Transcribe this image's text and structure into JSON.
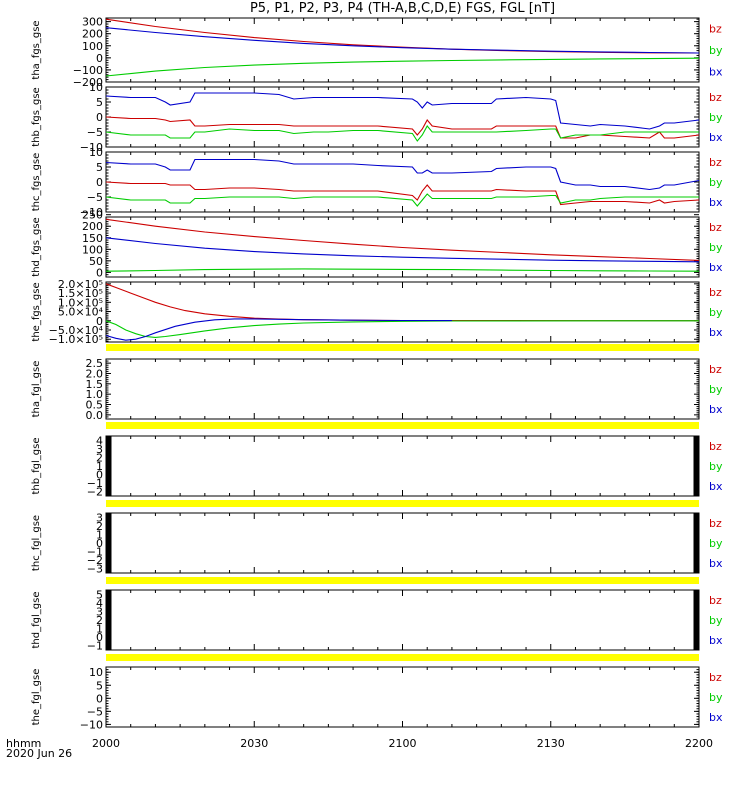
{
  "chart_data": {
    "type": "line",
    "title": "P5, P1, P2, P3, P4 (TH-A,B,C,D,E) FGS, FGL [nT]",
    "x_ticks": [
      "2000",
      "2030",
      "2100",
      "2130",
      "2200"
    ],
    "xlim_minutes": [
      0,
      120
    ],
    "x_unit_label": "hhmm",
    "date_label": "2020 Jun 26",
    "series_colors": {
      "bz": "#cc0000",
      "by": "#00cc00",
      "bx": "#0000cc"
    },
    "panels": [
      {
        "ylabel": "tha_fgs_gse",
        "ylim": [
          -200,
          330
        ],
        "yticks": [
          "300",
          "200",
          "100",
          "0",
          "−100",
          "−200"
        ],
        "ytick_values": [
          300,
          200,
          100,
          0,
          -100,
          -200
        ],
        "legend": [
          "bz",
          "by",
          "bx"
        ],
        "series": [
          {
            "name": "bz",
            "x": [
              0,
              10,
              20,
              30,
              40,
              50,
              60,
              70,
              80,
              90,
              100,
              110,
              120
            ],
            "values": [
              320,
              260,
              210,
              168,
              135,
              108,
              88,
              72,
              60,
              52,
              46,
              42,
              40
            ]
          },
          {
            "name": "by",
            "x": [
              0,
              10,
              20,
              30,
              40,
              50,
              60,
              70,
              80,
              90,
              100,
              110,
              120
            ],
            "values": [
              -150,
              -110,
              -80,
              -60,
              -45,
              -35,
              -28,
              -22,
              -17,
              -13,
              -9,
              -6,
              -3
            ]
          },
          {
            "name": "bx",
            "x": [
              0,
              10,
              20,
              30,
              40,
              50,
              60,
              70,
              80,
              90,
              100,
              110,
              120
            ],
            "values": [
              250,
              210,
              175,
              145,
              120,
              100,
              84,
              72,
              63,
              55,
              49,
              44,
              40
            ]
          }
        ]
      },
      {
        "ylabel": "thb_fgs_gse",
        "ylim": [
          -10,
          10
        ],
        "yticks": [
          "10",
          "5",
          "0",
          "−5",
          "−10"
        ],
        "ytick_values": [
          10,
          5,
          0,
          -5,
          -10
        ],
        "legend": [
          "bz",
          "by",
          "bx"
        ],
        "series": [
          {
            "name": "bx",
            "x": [
              0,
              5,
              10,
              12,
              13,
              17,
              18,
              20,
              25,
              30,
              35,
              38,
              42,
              45,
              50,
              55,
              62,
              63,
              64,
              65,
              66,
              70,
              78,
              79,
              85,
              90,
              91,
              92,
              95,
              98,
              100,
              105,
              110,
              112,
              113,
              115,
              120
            ],
            "values": [
              7,
              6.5,
              6.5,
              5,
              4,
              5,
              8,
              8,
              8,
              8,
              7.5,
              6,
              6.5,
              6.5,
              6.5,
              6.5,
              6,
              5,
              3,
              5,
              4,
              4.5,
              4.5,
              6,
              6.5,
              6,
              5.5,
              -2,
              -2.5,
              -3,
              -2.5,
              -3,
              -4,
              -3,
              -2,
              -2,
              -1
            ]
          },
          {
            "name": "bz",
            "x": [
              0,
              5,
              10,
              12,
              13,
              17,
              18,
              20,
              25,
              30,
              35,
              38,
              42,
              45,
              50,
              55,
              62,
              63,
              64,
              65,
              66,
              70,
              78,
              79,
              85,
              90,
              91,
              92,
              95,
              98,
              100,
              105,
              110,
              112,
              113,
              115,
              120
            ],
            "values": [
              0,
              -0.5,
              -0.5,
              -1,
              -1.5,
              -1,
              -3,
              -3,
              -2.5,
              -2.5,
              -2.5,
              -3,
              -3,
              -3,
              -3,
              -3,
              -4,
              -6,
              -4,
              -1,
              -3,
              -4,
              -4,
              -3,
              -3,
              -3,
              -3,
              -7,
              -7,
              -6,
              -6,
              -6.5,
              -7,
              -5,
              -7,
              -7,
              -6
            ]
          },
          {
            "name": "by",
            "x": [
              0,
              5,
              10,
              12,
              13,
              17,
              18,
              20,
              25,
              30,
              35,
              38,
              42,
              45,
              50,
              55,
              62,
              63,
              64,
              65,
              66,
              70,
              78,
              79,
              85,
              90,
              91,
              92,
              95,
              98,
              100,
              105,
              110,
              112,
              113,
              115,
              120
            ],
            "values": [
              -5,
              -6,
              -6,
              -6,
              -7,
              -7,
              -5,
              -5,
              -4,
              -4.5,
              -4.5,
              -5.5,
              -5,
              -5,
              -4.5,
              -4.5,
              -5.5,
              -8,
              -6,
              -3,
              -5,
              -5,
              -5,
              -5,
              -4.5,
              -4,
              -4,
              -7,
              -6,
              -6,
              -6,
              -5,
              -5,
              -5,
              -5,
              -5,
              -5
            ]
          }
        ]
      },
      {
        "ylabel": "thc_fgs_gse",
        "ylim": [
          -10,
          10
        ],
        "yticks": [
          "10",
          "5",
          "0",
          "−5",
          "−10"
        ],
        "ytick_values": [
          10,
          5,
          0,
          -5,
          -10
        ],
        "legend": [
          "bz",
          "by",
          "bx"
        ],
        "series": [
          {
            "name": "bx",
            "x": [
              0,
              5,
              10,
              12,
              13,
              17,
              18,
              20,
              25,
              30,
              35,
              38,
              42,
              45,
              50,
              55,
              62,
              63,
              64,
              65,
              66,
              70,
              78,
              79,
              85,
              90,
              91,
              92,
              95,
              98,
              100,
              105,
              110,
              112,
              113,
              115,
              120
            ],
            "values": [
              6.5,
              6,
              6,
              5,
              4,
              4,
              7.5,
              7.5,
              7.5,
              7.5,
              7,
              6,
              6,
              6,
              6,
              5.5,
              5,
              3,
              3,
              4,
              3,
              3,
              3.5,
              4.5,
              5,
              5,
              4.5,
              0,
              -1,
              -1,
              -1.5,
              -1.5,
              -2.5,
              -2,
              -1,
              -1,
              0.5
            ]
          },
          {
            "name": "bz",
            "x": [
              0,
              5,
              10,
              12,
              13,
              17,
              18,
              20,
              25,
              30,
              35,
              38,
              42,
              45,
              50,
              55,
              62,
              63,
              64,
              65,
              66,
              70,
              78,
              79,
              85,
              90,
              91,
              92,
              95,
              98,
              100,
              105,
              110,
              112,
              113,
              115,
              120
            ],
            "values": [
              0,
              -0.5,
              -0.5,
              -0.5,
              -1,
              -1,
              -2.5,
              -2.5,
              -2,
              -2,
              -2.5,
              -3,
              -3,
              -3,
              -3,
              -3,
              -4.5,
              -6,
              -3,
              -1,
              -3,
              -3,
              -3,
              -2.5,
              -3,
              -3,
              -3,
              -7.5,
              -7,
              -6.5,
              -6.5,
              -6.5,
              -7,
              -6,
              -7,
              -6.5,
              -6
            ]
          },
          {
            "name": "by",
            "x": [
              0,
              5,
              10,
              12,
              13,
              17,
              18,
              20,
              25,
              30,
              35,
              38,
              42,
              45,
              50,
              55,
              62,
              63,
              64,
              65,
              66,
              70,
              78,
              79,
              85,
              90,
              91,
              92,
              95,
              98,
              100,
              105,
              110,
              112,
              113,
              115,
              120
            ],
            "values": [
              -5,
              -6,
              -6,
              -6,
              -7,
              -7,
              -5.5,
              -5.5,
              -5,
              -5,
              -5,
              -5.5,
              -5,
              -5,
              -5,
              -5,
              -6,
              -8,
              -6,
              -4,
              -5.5,
              -5.5,
              -5.5,
              -5,
              -5,
              -4.5,
              -4.5,
              -7,
              -6,
              -6,
              -5.5,
              -5,
              -5,
              -5,
              -5,
              -5,
              -5
            ]
          }
        ]
      },
      {
        "ylabel": "thd_fgs_gse",
        "ylim": [
          -20,
          240
        ],
        "yticks": [
          "250",
          "200",
          "150",
          "100",
          "50",
          "0"
        ],
        "ytick_values": [
          250,
          200,
          150,
          100,
          50,
          0
        ],
        "legend": [
          "bz",
          "by",
          "bx"
        ],
        "series": [
          {
            "name": "bz",
            "x": [
              0,
              10,
              20,
              30,
              40,
              50,
              60,
              70,
              80,
              90,
              100,
              110,
              120
            ],
            "values": [
              230,
              200,
              175,
              155,
              138,
              122,
              108,
              96,
              86,
              76,
              68,
              60,
              52
            ]
          },
          {
            "name": "by",
            "x": [
              0,
              10,
              20,
              30,
              40,
              50,
              60,
              70,
              80,
              90,
              100,
              110,
              120
            ],
            "values": [
              5,
              8,
              12,
              14,
              15,
              14,
              13,
              12,
              10,
              8,
              7,
              6,
              5
            ]
          },
          {
            "name": "bx",
            "x": [
              0,
              10,
              20,
              30,
              40,
              50,
              60,
              70,
              80,
              90,
              100,
              110,
              120
            ],
            "values": [
              150,
              125,
              105,
              90,
              80,
              72,
              66,
              61,
              57,
              53,
              50,
              48,
              46
            ]
          }
        ]
      },
      {
        "ylabel": "the_fgs_gse",
        "ylim": [
          -115000,
          210000
        ],
        "yticks": [
          "2.0×10⁵",
          "1.5×10⁵",
          "1.0×10⁵",
          "5.0×10⁴",
          "0",
          "−5.0×10⁴",
          "−1.0×10⁵"
        ],
        "ytick_values": [
          200000,
          150000,
          100000,
          50000,
          0,
          -50000,
          -100000
        ],
        "legend": [
          "bz",
          "by",
          "bx"
        ],
        "series": [
          {
            "name": "bz",
            "x": [
              0,
              2,
              5,
              8,
              10,
              13,
              16,
              20,
              25,
              30,
              35,
              40,
              50,
              60,
              80,
              100,
              120
            ],
            "values": [
              200000,
              180000,
              150000,
              120000,
              100000,
              75000,
              55000,
              38000,
              24000,
              14000,
              9000,
              6000,
              3000,
              1500,
              800,
              500,
              300
            ]
          },
          {
            "name": "by",
            "x": [
              0,
              2,
              4,
              6,
              8,
              10,
              12,
              15,
              20,
              25,
              30,
              35,
              40,
              50,
              60,
              70,
              80,
              100,
              120
            ],
            "values": [
              0,
              -20000,
              -50000,
              -70000,
              -85000,
              -90000,
              -85000,
              -75000,
              -55000,
              -38000,
              -26000,
              -18000,
              -12000,
              -6000,
              -3000,
              -1500,
              -800,
              -400,
              -200
            ]
          },
          {
            "name": "bx",
            "x": [
              0,
              2,
              4,
              6,
              8,
              10,
              14,
              18,
              22,
              26,
              30,
              35,
              40,
              50,
              60,
              70
            ],
            "values": [
              -80000,
              -95000,
              -105000,
              -100000,
              -85000,
              -65000,
              -30000,
              -8000,
              5000,
              10000,
              10000,
              8000,
              6000,
              3000,
              1500,
              700
            ]
          }
        ]
      },
      {
        "ylabel": "tha_fgl_gse",
        "ylim": [
          -0.2,
          2.7
        ],
        "yticks": [
          "2.5",
          "2.0",
          "1.5",
          "1.0",
          "0.5",
          "0.0"
        ],
        "ytick_values": [
          2.5,
          2.0,
          1.5,
          1.0,
          0.5,
          0.0
        ],
        "legend": [
          "bz",
          "by",
          "bx"
        ],
        "series": []
      },
      {
        "ylabel": "thb_fgl_gse",
        "ylim": [
          -2.5,
          4.5
        ],
        "yticks": [
          "4",
          "3",
          "2",
          "1",
          "0",
          "−1",
          "−2"
        ],
        "ytick_values": [
          4,
          3,
          2,
          1,
          0,
          -1,
          -2
        ],
        "legend": [
          "bz",
          "by",
          "bx"
        ],
        "series": []
      },
      {
        "ylabel": "thc_fgl_gse",
        "ylim": [
          -3.5,
          3.5
        ],
        "yticks": [
          "3",
          "2",
          "1",
          "0",
          "−1",
          "−2",
          "−3"
        ],
        "ytick_values": [
          3,
          2,
          1,
          0,
          -1,
          -2,
          -3
        ],
        "legend": [
          "bz",
          "by",
          "bx"
        ],
        "series": []
      },
      {
        "ylabel": "thd_fgl_gse",
        "ylim": [
          -1.5,
          5.5
        ],
        "yticks": [
          "5",
          "4",
          "3",
          "2",
          "1",
          "0",
          "−1"
        ],
        "ytick_values": [
          5,
          4,
          3,
          2,
          1,
          0,
          -1
        ],
        "legend": [
          "bz",
          "by",
          "bx"
        ],
        "series": []
      },
      {
        "ylabel": "the_fgl_gse",
        "ylim": [
          -11,
          12
        ],
        "yticks": [
          "10",
          "5",
          "0",
          "−5",
          "−10"
        ],
        "ytick_values": [
          10,
          5,
          0,
          -5,
          -10
        ],
        "legend": [
          "bz",
          "by",
          "bx"
        ],
        "series": []
      }
    ]
  }
}
